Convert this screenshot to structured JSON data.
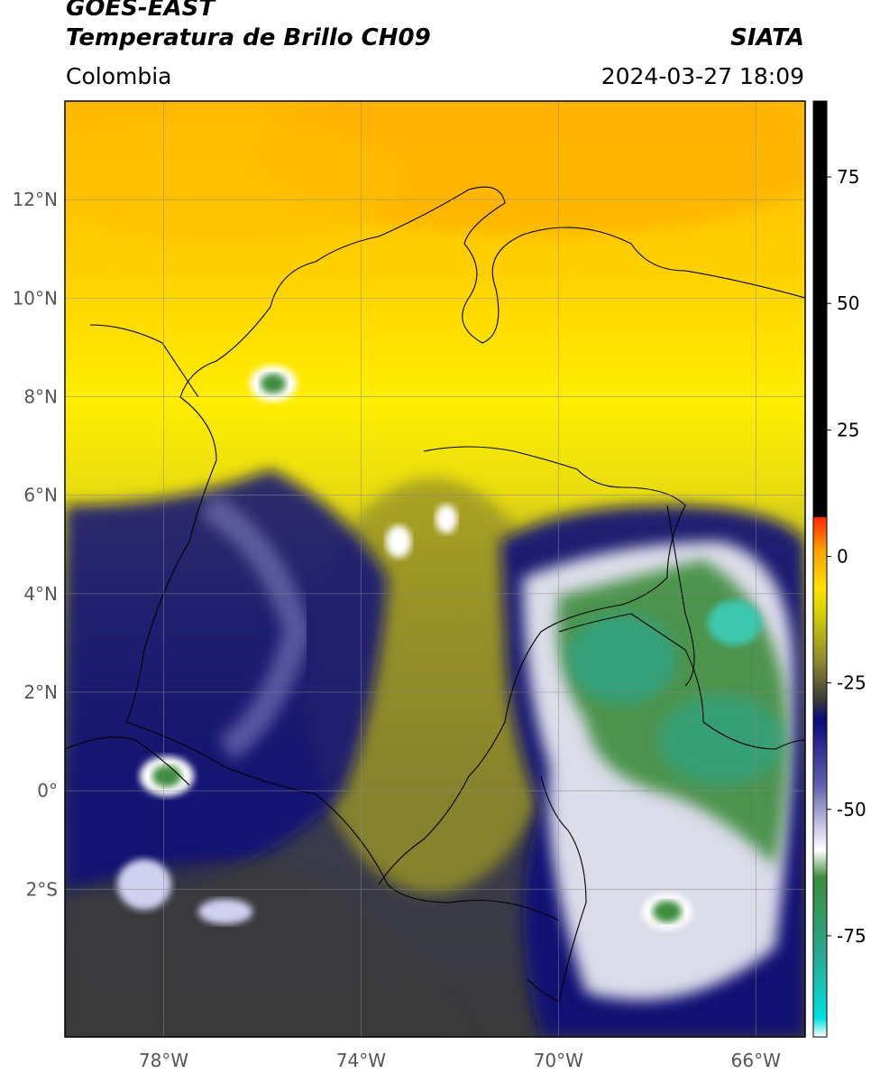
{
  "header": {
    "satellite": "GOES-EAST",
    "product": "Temperatura de Brillo CH09",
    "region": "Colombia",
    "agency": "SIATA",
    "datetime": "2024-03-27 18:09"
  },
  "map": {
    "lon_range": [
      -80,
      -65
    ],
    "lat_range": [
      -5,
      14
    ],
    "lat_ticks": [
      {
        "value": 12,
        "label": "12°N"
      },
      {
        "value": 10,
        "label": "10°N"
      },
      {
        "value": 8,
        "label": "8°N"
      },
      {
        "value": 6,
        "label": "6°N"
      },
      {
        "value": 4,
        "label": "4°N"
      },
      {
        "value": 2,
        "label": "2°N"
      },
      {
        "value": 0,
        "label": "0°"
      },
      {
        "value": -2,
        "label": "2°S"
      }
    ],
    "lon_ticks": [
      {
        "value": -78,
        "label": "78°W"
      },
      {
        "value": -74,
        "label": "74°W"
      },
      {
        "value": -70,
        "label": "70°W"
      },
      {
        "value": -66,
        "label": "66°W"
      }
    ],
    "grid": true
  },
  "colorbar": {
    "range": [
      -95,
      90
    ],
    "ticks": [
      {
        "value": 75,
        "label": "75"
      },
      {
        "value": 50,
        "label": "50"
      },
      {
        "value": 25,
        "label": "25"
      },
      {
        "value": 0,
        "label": "0"
      },
      {
        "value": -25,
        "label": "-25"
      },
      {
        "value": -50,
        "label": "-50"
      },
      {
        "value": -75,
        "label": "-75"
      }
    ],
    "colors": {
      "warm_black": "#000000",
      "red": "#ff2a00",
      "orange": "#ffa500",
      "yellow": "#ffee00",
      "olive": "#b3ad1a",
      "dark_olive": "#3a3a3a",
      "navy": "#0a0a7a",
      "white": "#ffffff",
      "green": "#3c8c3c",
      "cyan": "#00d8d0"
    }
  }
}
